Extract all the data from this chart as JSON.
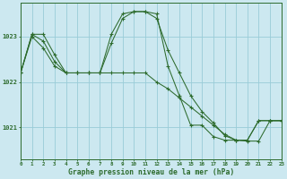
{
  "title": "Graphe pression niveau de la mer (hPa)",
  "background_color": "#cce8f0",
  "grid_color": "#99ccd8",
  "line_color": "#2d6b2d",
  "xlim": [
    0,
    23
  ],
  "ylim": [
    1020.3,
    1023.75
  ],
  "yticks": [
    1021,
    1022,
    1023
  ],
  "xticks": [
    0,
    1,
    2,
    3,
    4,
    5,
    6,
    7,
    8,
    9,
    10,
    11,
    12,
    13,
    14,
    15,
    16,
    17,
    18,
    19,
    20,
    21,
    22,
    23
  ],
  "line1_x": [
    0,
    1,
    2,
    3,
    4,
    5,
    6,
    7,
    8,
    9,
    10,
    11,
    12,
    13,
    14,
    15,
    16,
    17,
    18,
    19,
    20,
    21,
    22,
    23
  ],
  "line1_y": [
    1022.2,
    1023.05,
    1023.05,
    1022.6,
    1022.2,
    1022.2,
    1022.2,
    1022.2,
    1022.85,
    1023.4,
    1023.55,
    1023.55,
    1023.4,
    1022.7,
    1022.2,
    1021.7,
    1021.35,
    1021.1,
    1020.82,
    1020.72,
    1020.72,
    1021.15,
    1021.15,
    1021.15
  ],
  "line2_x": [
    0,
    1,
    2,
    3,
    4,
    5,
    6,
    7,
    8,
    9,
    10,
    11,
    12,
    13,
    14,
    15,
    16,
    17,
    18,
    19,
    20,
    21,
    22,
    23
  ],
  "line2_y": [
    1022.2,
    1023.05,
    1022.9,
    1022.45,
    1022.2,
    1022.2,
    1022.2,
    1022.2,
    1023.05,
    1023.5,
    1023.55,
    1023.55,
    1023.5,
    1022.35,
    1021.7,
    1021.05,
    1021.05,
    1020.8,
    1020.72,
    1020.72,
    1020.72,
    1021.15,
    1021.15,
    1021.15
  ],
  "line3_x": [
    0,
    1,
    2,
    3,
    4,
    5,
    6,
    7,
    8,
    9,
    10,
    11,
    12,
    13,
    14,
    15,
    16,
    17,
    18,
    19,
    20,
    21,
    22,
    23
  ],
  "line3_y": [
    1022.2,
    1023.0,
    1022.75,
    1022.35,
    1022.2,
    1022.2,
    1022.2,
    1022.2,
    1022.2,
    1022.2,
    1022.2,
    1022.2,
    1022.0,
    1021.85,
    1021.65,
    1021.45,
    1021.25,
    1021.05,
    1020.85,
    1020.72,
    1020.7,
    1020.7,
    1021.15,
    1021.15
  ]
}
